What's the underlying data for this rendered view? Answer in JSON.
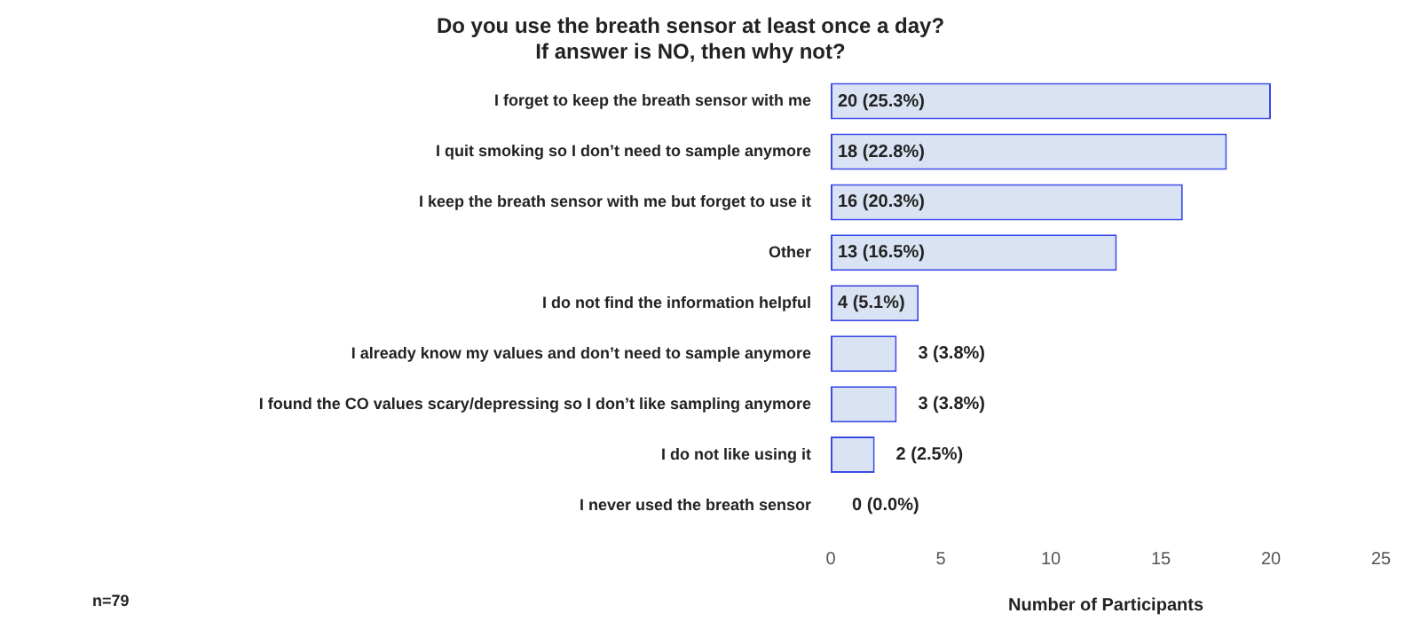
{
  "chart_data": {
    "type": "bar",
    "orientation": "horizontal",
    "title": "Do you use the breath sensor at least once a day?\nIf answer is NO, then why not?",
    "xlabel": "Number of Participants",
    "categories": [
      "I forget to keep the breath sensor with me",
      "I quit smoking so I don’t need to sample anymore",
      "I keep the breath sensor with me but forget to use it",
      "Other",
      "I do not find the information helpful",
      "I already know my values and don’t need to sample anymore",
      "I found the CO values scary/depressing so I don’t like sampling anymore",
      "I do not like using it",
      "I never used the breath sensor"
    ],
    "values": [
      20,
      18,
      16,
      13,
      4,
      3,
      3,
      2,
      0
    ],
    "value_labels": [
      "20 (25.3%)",
      "18 (22.8%)",
      "16 (20.3%)",
      "13 (16.5%)",
      "4 (5.1%)",
      "3 (3.8%)",
      "3 (3.8%)",
      "2 (2.5%)",
      "0 (0.0%)"
    ],
    "color": "#dae3f3",
    "xlim": [
      0,
      25
    ],
    "xticks": [
      0,
      5,
      10,
      15,
      20,
      25
    ],
    "grid": false,
    "legend": false,
    "annotations": [
      "n=79"
    ]
  }
}
